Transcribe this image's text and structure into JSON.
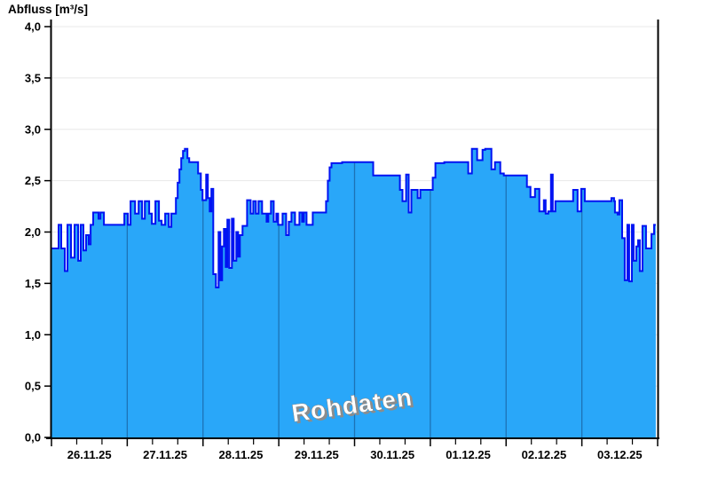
{
  "page": {
    "background": "#ffffff"
  },
  "chart_data": {
    "type": "area",
    "title": "Abfluss [m³/s]",
    "watermark": "Rohdaten",
    "ylabel": "Abfluss [m³/s]",
    "xlabel": "",
    "ylim": [
      0,
      4
    ],
    "y_tick_step": 0.5,
    "y_tick_labels": [
      "0,0",
      "0,5",
      "1,0",
      "1,5",
      "2,0",
      "2,5",
      "3,0",
      "3,5",
      "4,0"
    ],
    "x_axis": {
      "unit": "days since 26.11.2025 00:00",
      "range_days": [
        0,
        8
      ],
      "day_labels": [
        "26.11.25",
        "27.11.25",
        "28.11.25",
        "29.11.25",
        "30.11.25",
        "01.12.25",
        "02.12.25",
        "03.12.25"
      ],
      "minor_tick_hours": 8
    },
    "grid": true,
    "legend_position": "none",
    "series": [
      {
        "name": "Abfluss Rohdaten",
        "step": true,
        "points": [
          [
            0.0,
            1.84
          ],
          [
            0.094,
            2.07
          ],
          [
            0.129,
            1.84
          ],
          [
            0.176,
            1.62
          ],
          [
            0.211,
            2.07
          ],
          [
            0.258,
            1.75
          ],
          [
            0.305,
            2.07
          ],
          [
            0.352,
            1.72
          ],
          [
            0.387,
            2.07
          ],
          [
            0.422,
            1.82
          ],
          [
            0.457,
            1.97
          ],
          [
            0.492,
            1.88
          ],
          [
            0.516,
            2.07
          ],
          [
            0.551,
            2.19
          ],
          [
            0.621,
            2.13
          ],
          [
            0.645,
            2.19
          ],
          [
            0.692,
            2.07
          ],
          [
            0.962,
            2.18
          ],
          [
            1.009,
            2.07
          ],
          [
            1.044,
            2.3
          ],
          [
            1.103,
            2.18
          ],
          [
            1.15,
            2.3
          ],
          [
            1.196,
            2.13
          ],
          [
            1.232,
            2.3
          ],
          [
            1.29,
            2.18
          ],
          [
            1.325,
            2.08
          ],
          [
            1.372,
            2.3
          ],
          [
            1.419,
            2.11
          ],
          [
            1.454,
            2.07
          ],
          [
            1.501,
            2.18
          ],
          [
            1.548,
            2.05
          ],
          [
            1.583,
            2.18
          ],
          [
            1.642,
            2.33
          ],
          [
            1.666,
            2.48
          ],
          [
            1.689,
            2.61
          ],
          [
            1.713,
            2.72
          ],
          [
            1.736,
            2.79
          ],
          [
            1.76,
            2.81
          ],
          [
            1.795,
            2.72
          ],
          [
            1.818,
            2.68
          ],
          [
            1.935,
            2.57
          ],
          [
            1.971,
            2.41
          ],
          [
            1.994,
            2.31
          ],
          [
            2.041,
            2.56
          ],
          [
            2.064,
            2.33
          ],
          [
            2.088,
            2.2
          ],
          [
            2.111,
            2.42
          ],
          [
            2.135,
            1.59
          ],
          [
            2.17,
            1.46
          ],
          [
            2.205,
            2.0
          ],
          [
            2.229,
            1.53
          ],
          [
            2.252,
            1.86
          ],
          [
            2.276,
            2.03
          ],
          [
            2.299,
            1.66
          ],
          [
            2.322,
            2.12
          ],
          [
            2.346,
            1.65
          ],
          [
            2.381,
            2.13
          ],
          [
            2.405,
            1.72
          ],
          [
            2.44,
            2.0
          ],
          [
            2.463,
            1.76
          ],
          [
            2.487,
            1.97
          ],
          [
            2.522,
            2.06
          ],
          [
            2.581,
            2.31
          ],
          [
            2.628,
            2.18
          ],
          [
            2.663,
            2.3
          ],
          [
            2.698,
            2.18
          ],
          [
            2.733,
            2.3
          ],
          [
            2.78,
            2.18
          ],
          [
            2.839,
            2.1
          ],
          [
            2.862,
            2.18
          ],
          [
            2.897,
            2.3
          ],
          [
            2.933,
            2.1
          ],
          [
            2.968,
            2.18
          ],
          [
            2.991,
            2.07
          ],
          [
            3.05,
            2.18
          ],
          [
            3.097,
            1.97
          ],
          [
            3.132,
            2.1
          ],
          [
            3.167,
            2.19
          ],
          [
            3.214,
            2.07
          ],
          [
            3.273,
            2.19
          ],
          [
            3.308,
            2.1
          ],
          [
            3.331,
            2.19
          ],
          [
            3.366,
            2.07
          ],
          [
            3.448,
            2.19
          ],
          [
            3.624,
            2.3
          ],
          [
            3.648,
            2.5
          ],
          [
            3.671,
            2.63
          ],
          [
            3.695,
            2.67
          ],
          [
            3.836,
            2.68
          ],
          [
            4.246,
            2.55
          ],
          [
            4.598,
            2.41
          ],
          [
            4.633,
            2.3
          ],
          [
            4.68,
            2.56
          ],
          [
            4.715,
            2.19
          ],
          [
            4.75,
            2.41
          ],
          [
            4.833,
            2.33
          ],
          [
            4.868,
            2.41
          ],
          [
            5.032,
            2.53
          ],
          [
            5.067,
            2.67
          ],
          [
            5.184,
            2.68
          ],
          [
            5.501,
            2.57
          ],
          [
            5.548,
            2.81
          ],
          [
            5.618,
            2.7
          ],
          [
            5.689,
            2.8
          ],
          [
            5.724,
            2.81
          ],
          [
            5.806,
            2.61
          ],
          [
            5.853,
            2.68
          ],
          [
            5.923,
            2.57
          ],
          [
            5.97,
            2.55
          ],
          [
            6.275,
            2.44
          ],
          [
            6.322,
            2.34
          ],
          [
            6.381,
            2.42
          ],
          [
            6.439,
            2.2
          ],
          [
            6.498,
            2.31
          ],
          [
            6.522,
            2.18
          ],
          [
            6.557,
            2.2
          ],
          [
            6.592,
            2.56
          ],
          [
            6.616,
            2.2
          ],
          [
            6.651,
            2.3
          ],
          [
            6.885,
            2.41
          ],
          [
            6.944,
            2.2
          ],
          [
            6.991,
            2.42
          ],
          [
            7.038,
            2.3
          ],
          [
            7.39,
            2.33
          ],
          [
            7.425,
            2.3
          ],
          [
            7.437,
            2.19
          ],
          [
            7.472,
            2.17
          ],
          [
            7.495,
            2.31
          ],
          [
            7.531,
            1.94
          ],
          [
            7.566,
            1.53
          ],
          [
            7.601,
            2.07
          ],
          [
            7.624,
            1.52
          ],
          [
            7.66,
            2.07
          ],
          [
            7.683,
            1.72
          ],
          [
            7.718,
            1.86
          ],
          [
            7.742,
            1.92
          ],
          [
            7.765,
            1.62
          ],
          [
            7.8,
            2.06
          ],
          [
            7.847,
            1.84
          ],
          [
            7.918,
            1.98
          ],
          [
            7.953,
            2.07
          ],
          [
            7.975,
            2.07
          ]
        ]
      }
    ]
  },
  "colors": {
    "area_fill": "#29A7F9",
    "line_stroke": "#0013F2",
    "axis": "#000000",
    "grid_line": "#E8E8E8",
    "day_separator": "#1D72B5",
    "watermark_fill": "#FFFFFF",
    "watermark_shadow": "#8C8C8C",
    "tick_label": "#000000"
  }
}
